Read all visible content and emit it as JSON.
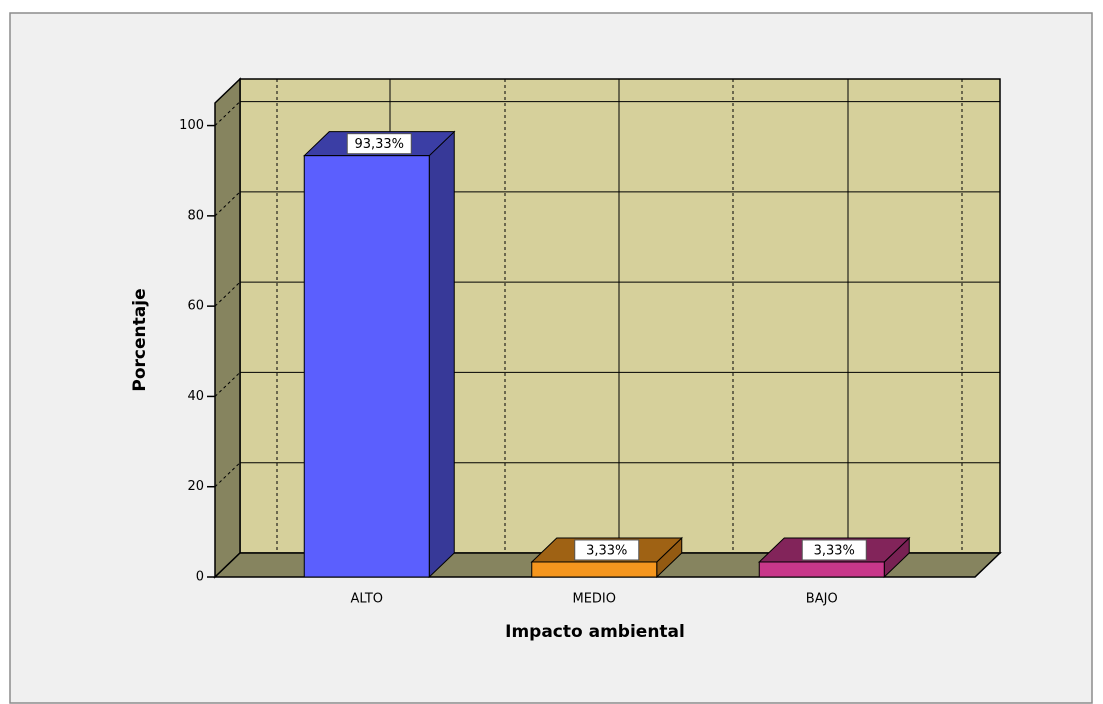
{
  "chart_data": {
    "type": "bar3d",
    "x_label": "Impacto ambiental",
    "y_label": "Porcentaje",
    "categories": [
      "ALTO",
      "MEDIO",
      "BAJO"
    ],
    "values": [
      93.33,
      3.33,
      3.33
    ],
    "value_labels": [
      "93,33%",
      "3,33%",
      "3,33%"
    ],
    "colors": [
      "#5b5ffe",
      "#f5961e",
      "#c8378a"
    ],
    "ylim": [
      0,
      105
    ],
    "yticks": [
      0,
      20,
      40,
      60,
      80,
      100
    ],
    "grid": true
  }
}
